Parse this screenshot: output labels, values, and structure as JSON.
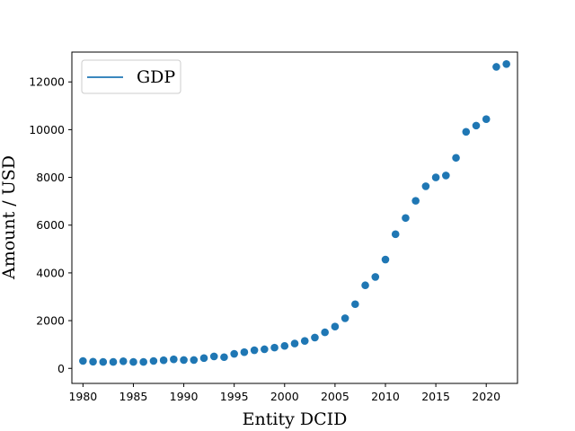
{
  "chart_data": {
    "type": "scatter",
    "title": "",
    "xlabel": "Entity DCID",
    "ylabel": "Amount / USD",
    "xlim": [
      1978.9,
      2023.1
    ],
    "ylim": [
      -630,
      13250
    ],
    "xticks": [
      1980,
      1985,
      1990,
      1995,
      2000,
      2005,
      2010,
      2015,
      2020
    ],
    "yticks": [
      0,
      2000,
      4000,
      6000,
      8000,
      10000,
      12000
    ],
    "grid": false,
    "legend": {
      "position": "top-left",
      "entries": [
        "GDP"
      ]
    },
    "colors": {
      "series": "#1f77b4",
      "axis": "#000000",
      "background": "#ffffff"
    },
    "series": [
      {
        "name": "GDP",
        "x": [
          1980,
          1981,
          1982,
          1983,
          1984,
          1985,
          1986,
          1987,
          1988,
          1989,
          1990,
          1991,
          1992,
          1993,
          1994,
          1995,
          1996,
          1997,
          1998,
          1999,
          2000,
          2001,
          2002,
          2003,
          2004,
          2005,
          2006,
          2007,
          2008,
          2009,
          2010,
          2011,
          2012,
          2013,
          2014,
          2015,
          2016,
          2017,
          2018,
          2019,
          2020,
          2021,
          2022
        ],
        "y": [
          310,
          280,
          270,
          270,
          300,
          270,
          270,
          310,
          340,
          380,
          350,
          350,
          430,
          500,
          470,
          610,
          680,
          760,
          800,
          870,
          940,
          1040,
          1150,
          1290,
          1510,
          1750,
          2100,
          2690,
          3480,
          3830,
          4560,
          5620,
          6300,
          7020,
          7630,
          8000,
          8080,
          8820,
          9910,
          10170,
          10440,
          12630,
          12750
        ]
      }
    ]
  }
}
